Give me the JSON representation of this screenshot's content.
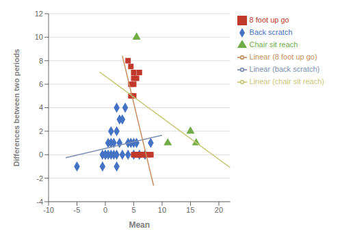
{
  "chart_data": {
    "type": "scatter",
    "xlabel": "Mean",
    "ylabel": "Differences between two periods",
    "xlim": [
      -10,
      22
    ],
    "ylim": [
      -4,
      12
    ],
    "xticks": [
      -10,
      -5,
      0,
      5,
      10,
      15,
      20
    ],
    "yticks": [
      -4,
      -2,
      0,
      2,
      4,
      6,
      8,
      10,
      12
    ],
    "grid": "y",
    "legend": "right",
    "series": [
      {
        "name": "Chair sit reach",
        "type": "scatter",
        "marker": "triangle",
        "color": "#70AD47",
        "x": [
          4.5,
          5.5,
          11,
          15,
          16
        ],
        "values": [
          1,
          10,
          1,
          2,
          1
        ]
      },
      {
        "name": "Back scratch",
        "type": "scatter",
        "marker": "diamond",
        "color": "#4472C4",
        "x": [
          -5,
          -0.5,
          -0.5,
          0,
          0,
          0.5,
          0.5,
          1,
          1,
          1,
          1.5,
          1.5,
          2,
          2,
          2,
          2.5,
          2.5,
          3,
          3,
          3.5,
          4,
          4,
          4.5,
          5,
          5,
          5.5,
          6,
          7,
          8,
          2
        ],
        "values": [
          -1,
          -1,
          0,
          0,
          0,
          0,
          1,
          1,
          2,
          0,
          1,
          0,
          2,
          0,
          4,
          3,
          1,
          0,
          3,
          4,
          1,
          0,
          1,
          1,
          0,
          1,
          0,
          0,
          1,
          -1
        ]
      },
      {
        "name": "8 foot up go",
        "type": "scatter",
        "marker": "square",
        "color": "#C0392B",
        "x": [
          4,
          4.5,
          4.5,
          4.5,
          5,
          5,
          5,
          5,
          5,
          5.5,
          5.5,
          5.5,
          5.5,
          6,
          6,
          6,
          6.5,
          6.5,
          7,
          7.5,
          8,
          8
        ],
        "values": [
          8,
          6,
          7.5,
          5,
          5,
          6.5,
          7,
          6,
          0,
          6.5,
          0,
          0,
          0,
          7,
          0,
          0,
          0,
          0,
          0,
          0,
          0,
          0
        ]
      },
      {
        "name": "Linear (chair sit reach)",
        "type": "line",
        "color": "#C8C878",
        "x": [
          -1,
          22
        ],
        "values": [
          7.0313,
          -1.1021
        ]
      },
      {
        "name": "Linear (back scratch)",
        "type": "line",
        "color": "#8090B0",
        "x": [
          -7,
          10
        ],
        "values": [
          -0.2672,
          1.6594
        ]
      },
      {
        "name": "Linear (8 foot up go)",
        "type": "line",
        "color": "#C89060",
        "x": [
          3,
          8.5
        ],
        "values": [
          8.4048,
          -2.6324
        ]
      }
    ]
  }
}
